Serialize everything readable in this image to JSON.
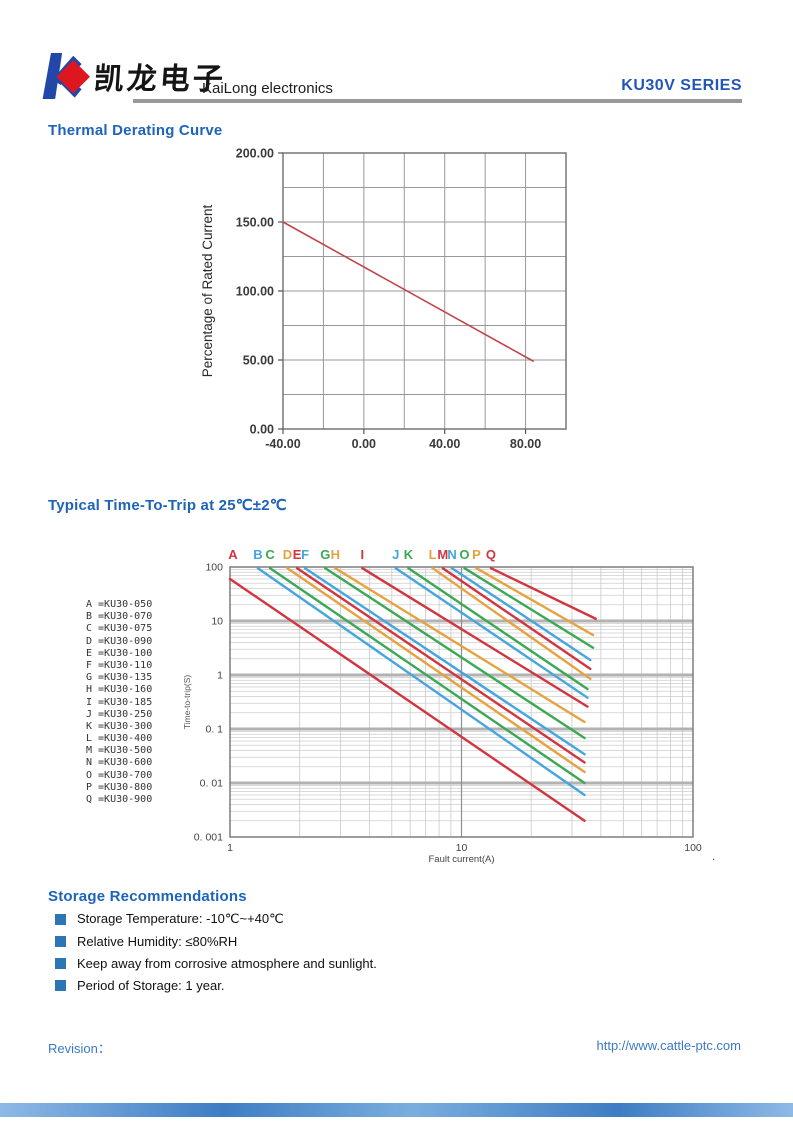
{
  "header": {
    "logo_text": "凯龙电子",
    "company": "KaiLong electronics",
    "series": "KU30V SERIES",
    "logo_colors": {
      "blue": "#2148a8",
      "red": "#dd1620"
    }
  },
  "sections": {
    "derating_title": "Thermal Derating Curve",
    "trip_title": "Typical Time-To-Trip at 25℃±2℃",
    "storage_title": "Storage Recommendations"
  },
  "storage_items": [
    "Storage Temperature: -10℃~+40℃",
    "Relative Humidity: ≤80%RH",
    "Keep away from corrosive atmosphere and sunlight.",
    "Period of Storage: 1 year."
  ],
  "footer": {
    "revision_label": "Revision：",
    "url": "http://www.cattle-ptc.com"
  },
  "chart_data": [
    {
      "type": "line",
      "title": "Thermal Derating Curve",
      "xlabel": "",
      "ylabel": "Percentage of Rated Current",
      "xlim": [
        -40,
        100
      ],
      "ylim": [
        0,
        200
      ],
      "x_grid_step": 20,
      "y_grid_step": 25,
      "x_major_ticks": [
        -40,
        0,
        40,
        80
      ],
      "x_tick_labels": [
        "-40.00",
        "0.00",
        "40.00",
        "80.00"
      ],
      "y_major_ticks": [
        0,
        50,
        100,
        150,
        200
      ],
      "y_tick_labels": [
        "0.00",
        "50.00",
        "100.00",
        "150.00",
        "200.00"
      ],
      "grid": true,
      "line_color": "#c2454a",
      "points": [
        [
          -40,
          150
        ],
        [
          84,
          49
        ]
      ]
    },
    {
      "type": "line",
      "scale": "log-log",
      "title": "Typical Time-To-Trip at 25℃±2℃",
      "xlabel": "Fault current(A)",
      "ylabel": "Time-to-trip(S)",
      "xlim": [
        1,
        100
      ],
      "ylim": [
        0.001,
        100
      ],
      "x_ticks": [
        1,
        10,
        100
      ],
      "x_tick_labels": [
        "1",
        "10",
        "100"
      ],
      "y_ticks": [
        100,
        10,
        1,
        0.1,
        0.01,
        0.001
      ],
      "y_tick_labels": [
        "100",
        "10",
        "1",
        "0. 1",
        "0. 01",
        "0. 001"
      ],
      "grid": true,
      "legend_position": "left",
      "stray_mark": ".",
      "series": [
        {
          "label": "A",
          "model": "KU30-050",
          "color": "#d03540",
          "start": [
            1.0,
            60
          ],
          "end": [
            34,
            0.002
          ]
        },
        {
          "label": "B",
          "model": "KU30-070",
          "color": "#45a5dd",
          "start": [
            1.32,
            95
          ],
          "end": [
            34,
            0.006
          ]
        },
        {
          "label": "C",
          "model": "KU30-075",
          "color": "#3aa855",
          "start": [
            1.49,
            95
          ],
          "end": [
            34,
            0.01
          ]
        },
        {
          "label": "D",
          "model": "KU30-090",
          "color": "#e5a23e",
          "start": [
            1.77,
            95
          ],
          "end": [
            34,
            0.016
          ]
        },
        {
          "label": "E",
          "model": "KU30-100",
          "color": "#d03540",
          "start": [
            1.95,
            95
          ],
          "end": [
            34,
            0.024
          ]
        },
        {
          "label": "F",
          "model": "KU30-110",
          "color": "#45a5dd",
          "start": [
            2.11,
            95
          ],
          "end": [
            34,
            0.034
          ]
        },
        {
          "label": "G",
          "model": "KU30-135",
          "color": "#3aa855",
          "start": [
            2.58,
            95
          ],
          "end": [
            34,
            0.068
          ]
        },
        {
          "label": "H",
          "model": "KU30-160",
          "color": "#e5a23e",
          "start": [
            2.85,
            95
          ],
          "end": [
            34,
            0.135
          ]
        },
        {
          "label": "I",
          "model": "KU30-185",
          "color": "#d03540",
          "start": [
            3.73,
            95
          ],
          "end": [
            35,
            0.26
          ]
        },
        {
          "label": "J",
          "model": "KU30-250",
          "color": "#45a5dd",
          "start": [
            5.2,
            95
          ],
          "end": [
            35,
            0.38
          ]
        },
        {
          "label": "K",
          "model": "KU30-300",
          "color": "#3aa855",
          "start": [
            5.9,
            95
          ],
          "end": [
            35,
            0.55
          ]
        },
        {
          "label": "L",
          "model": "KU30-400",
          "color": "#e5a23e",
          "start": [
            7.5,
            95
          ],
          "end": [
            36,
            0.85
          ]
        },
        {
          "label": "M",
          "model": "KU30-500",
          "color": "#d03540",
          "start": [
            8.3,
            95
          ],
          "end": [
            36,
            1.3
          ]
        },
        {
          "label": "N",
          "model": "KU30-600",
          "color": "#45a5dd",
          "start": [
            9.1,
            95
          ],
          "end": [
            36,
            1.9
          ]
        },
        {
          "label": "O",
          "model": "KU30-700",
          "color": "#3aa855",
          "start": [
            10.3,
            95
          ],
          "end": [
            37,
            3.2
          ]
        },
        {
          "label": "P",
          "model": "KU30-800",
          "color": "#e5a23e",
          "start": [
            11.6,
            95
          ],
          "end": [
            37,
            5.5
          ]
        },
        {
          "label": "Q",
          "model": "KU30-900",
          "color": "#d03540",
          "start": [
            13.4,
            95
          ],
          "end": [
            38,
            11
          ]
        }
      ]
    }
  ]
}
